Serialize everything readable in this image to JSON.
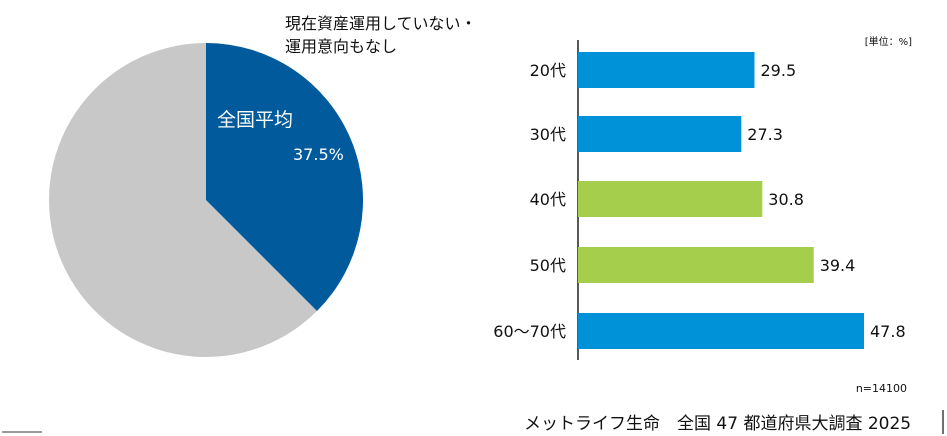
{
  "chart_data": [
    {
      "type": "pie",
      "title": "現在資産運用していない・運用意向もなし",
      "title_lines": [
        "現在資産運用していない・",
        "運用意向もなし"
      ],
      "slices": [
        {
          "label": "全国平均",
          "value": 37.5,
          "value_label": "37.5%",
          "color": "#005A9C"
        },
        {
          "label": "",
          "value": 62.5,
          "color": "#C8C8C8"
        }
      ]
    },
    {
      "type": "bar",
      "orientation": "horizontal",
      "unit_label": "[単位：%]",
      "categories": [
        "20代",
        "30代",
        "40代",
        "50代",
        "60～70代"
      ],
      "values": [
        29.5,
        27.3,
        30.8,
        39.4,
        47.8
      ],
      "value_labels": [
        "29.5",
        "27.3",
        "30.8",
        "39.4",
        "47.8"
      ],
      "colors": [
        "#0092D8",
        "#0092D8",
        "#A6CE4D",
        "#A6CE4D",
        "#0092D8"
      ],
      "xlim": [
        0,
        50
      ],
      "grid": false,
      "sample_note": "n=14100"
    }
  ],
  "source": "メットライフ生命　全国 47 都道府県大調査 2025"
}
